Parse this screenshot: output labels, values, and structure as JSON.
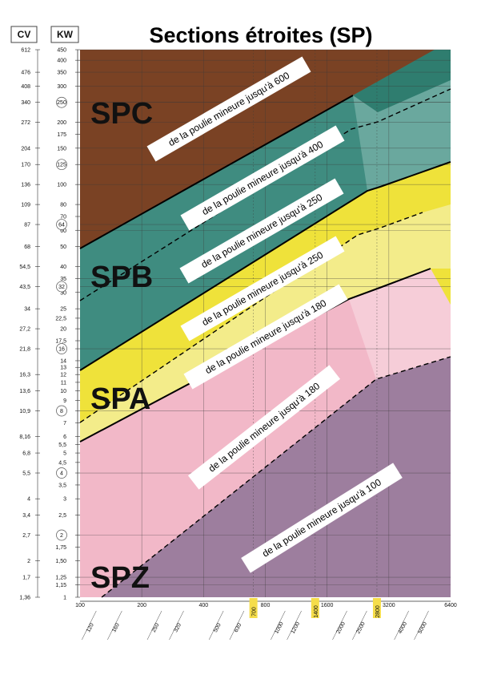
{
  "chart_data": {
    "type": "area",
    "title": "Sections étroites (SP)",
    "axis_headers": {
      "cv": "CV",
      "kw": "KW"
    },
    "x_bottom_ticks": [
      "100",
      "200",
      "400",
      "700",
      "800",
      "1400",
      "1600",
      "2800",
      "3200",
      "6400"
    ],
    "x_bottom_highlighted": [
      "700",
      "1400",
      "2800"
    ],
    "x_rotated_ticks": [
      "120",
      "160",
      "250",
      "320",
      "500",
      "630",
      "1000",
      "1200",
      "2000",
      "2500",
      "4000",
      "5000"
    ],
    "kw_ticks": [
      {
        "label": "450",
        "v": 450
      },
      {
        "label": "400",
        "v": 400
      },
      {
        "label": "350",
        "v": 350
      },
      {
        "label": "300",
        "v": 300
      },
      {
        "label": "250",
        "v": 250
      },
      {
        "label": "200",
        "v": 200
      },
      {
        "label": "175",
        "v": 175
      },
      {
        "label": "150",
        "v": 150
      },
      {
        "label": "125",
        "v": 125
      },
      {
        "label": "100",
        "v": 100
      },
      {
        "label": "80",
        "v": 80
      },
      {
        "label": "70",
        "v": 70
      },
      {
        "label": "60",
        "v": 60
      },
      {
        "label": "50",
        "v": 50
      },
      {
        "label": "40",
        "v": 40
      },
      {
        "label": "35",
        "v": 35
      },
      {
        "label": "30",
        "v": 30
      },
      {
        "label": "25",
        "v": 25
      },
      {
        "label": "22,5",
        "v": 22.5
      },
      {
        "label": "20",
        "v": 20
      },
      {
        "label": "17,5",
        "v": 17.5
      },
      {
        "label": "16",
        "v": 16
      },
      {
        "label": "14",
        "v": 14
      },
      {
        "label": "13",
        "v": 13
      },
      {
        "label": "12",
        "v": 12
      },
      {
        "label": "11",
        "v": 11
      },
      {
        "label": "10",
        "v": 10
      },
      {
        "label": "9",
        "v": 9
      },
      {
        "label": "8",
        "v": 8
      },
      {
        "label": "7",
        "v": 7
      },
      {
        "label": "6",
        "v": 6
      },
      {
        "label": "5,5",
        "v": 5.5
      },
      {
        "label": "5",
        "v": 5
      },
      {
        "label": "4,5",
        "v": 4.5
      },
      {
        "label": "4",
        "v": 4
      },
      {
        "label": "3,5",
        "v": 3.5
      },
      {
        "label": "3",
        "v": 3
      },
      {
        "label": "2,5",
        "v": 2.5
      },
      {
        "label": "2",
        "v": 2
      },
      {
        "label": "1,75",
        "v": 1.75
      },
      {
        "label": "1,50",
        "v": 1.5
      },
      {
        "label": "1,25",
        "v": 1.25
      },
      {
        "label": "1,15",
        "v": 1.15
      },
      {
        "label": "1",
        "v": 1
      }
    ],
    "kw_circled": [
      "250",
      "125",
      "64",
      "32",
      "16",
      "8",
      "4",
      "2"
    ],
    "cv_ticks": [
      {
        "label": "612",
        "v": 450
      },
      {
        "label": "476",
        "v": 350
      },
      {
        "label": "408",
        "v": 300
      },
      {
        "label": "340",
        "v": 250
      },
      {
        "label": "272",
        "v": 200
      },
      {
        "label": "204",
        "v": 150
      },
      {
        "label": "170",
        "v": 125
      },
      {
        "label": "136",
        "v": 100
      },
      {
        "label": "109",
        "v": 80
      },
      {
        "label": "87",
        "v": 64
      },
      {
        "label": "68",
        "v": 50
      },
      {
        "label": "54,5",
        "v": 40
      },
      {
        "label": "43,5",
        "v": 32
      },
      {
        "label": "34",
        "v": 25
      },
      {
        "label": "27,2",
        "v": 20
      },
      {
        "label": "21,8",
        "v": 16
      },
      {
        "label": "16,3",
        "v": 12
      },
      {
        "label": "13,6",
        "v": 10
      },
      {
        "label": "10,9",
        "v": 8
      },
      {
        "label": "8,16",
        "v": 6
      },
      {
        "label": "6,8",
        "v": 5
      },
      {
        "label": "5,5",
        "v": 4
      },
      {
        "label": "4",
        "v": 3
      },
      {
        "label": "3,4",
        "v": 2.5
      },
      {
        "label": "2,7",
        "v": 2
      },
      {
        "label": "2",
        "v": 1.5
      },
      {
        "label": "1,7",
        "v": 1.25
      },
      {
        "label": "1,36",
        "v": 1
      }
    ],
    "kw_range": [
      1,
      450
    ],
    "x_range": [
      100,
      6400
    ],
    "regions": [
      {
        "name": "SPZ",
        "color": "#9d7e9e"
      },
      {
        "name": "SPA",
        "color": "#f2b8c8"
      },
      {
        "name": "SPB",
        "color": "#3f8c80"
      },
      {
        "name": "SPC",
        "color": "#7a4224"
      }
    ],
    "annotations": [
      "de la poulie mineure jusqu'à 600",
      "de la poulie mineure jusqu'à 400",
      "de la poulie mineure jusqu'à 250",
      "de la poulie mineure jusqu'à 250",
      "de la poulie mineure jusqu'à 180",
      "de la poulie mineure jusqu'à 180",
      "de la poulie mineure jusqu'à 100"
    ]
  }
}
